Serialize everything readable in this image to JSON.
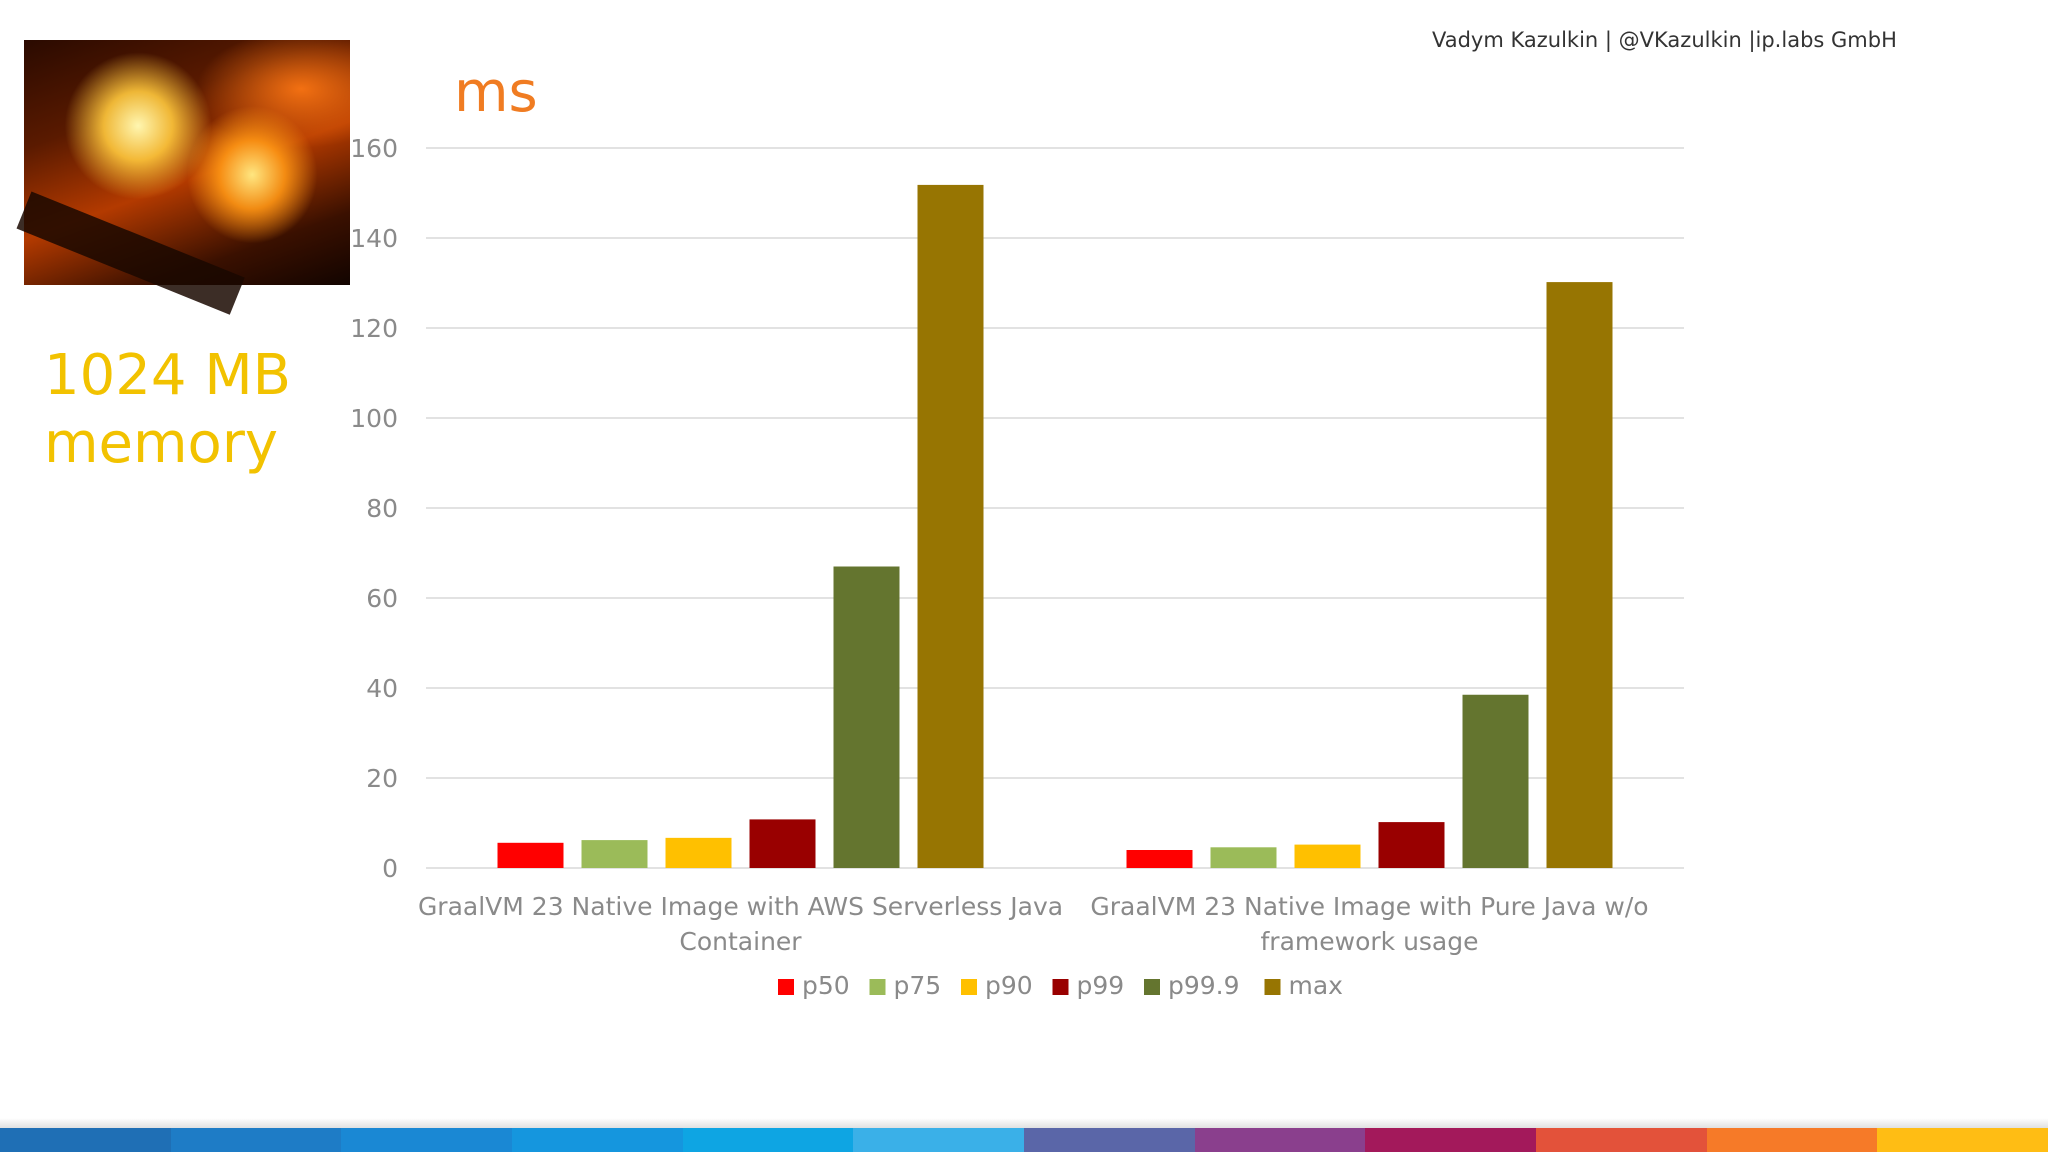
{
  "header": {
    "credit": "Vadym Kazulkin | @VKazulkin |ip.labs GmbH"
  },
  "side": {
    "memory_line1": "1024 MB",
    "memory_line2": "memory",
    "photo_icon": "campfire-image"
  },
  "unit": "ms",
  "colors": {
    "p50": "#ff0000",
    "p75": "#9bbb59",
    "p90": "#ffc000",
    "p99": "#990000",
    "p99.9": "#64752f",
    "max": "#977502"
  },
  "stripe_colors": [
    "#1f6fb5",
    "#1e7cc6",
    "#1a88d4",
    "#1596de",
    "#0ea5e3",
    "#3ab0e8",
    "#5a66a8",
    "#8a3f8d",
    "#a3195b",
    "#e3523a",
    "#f67a28",
    "#ffbd14"
  ],
  "chart_data": {
    "type": "bar",
    "categories": [
      "GraalVM 23 Native Image with AWS Serverless Java Container",
      "GraalVM 23 Native Image with Pure Java w/o framework usage"
    ],
    "category_lines": [
      [
        "GraalVM 23 Native Image with AWS Serverless Java",
        "Container"
      ],
      [
        "GraalVM 23 Native Image with Pure Java w/o",
        "framework usage"
      ]
    ],
    "series": [
      {
        "name": "p50",
        "values": [
          5.6,
          4.0
        ]
      },
      {
        "name": "p75",
        "values": [
          6.2,
          4.6
        ]
      },
      {
        "name": "p90",
        "values": [
          6.7,
          5.2
        ]
      },
      {
        "name": "p99",
        "values": [
          10.8,
          10.2
        ]
      },
      {
        "name": "p99.9",
        "values": [
          67.0,
          38.5
        ]
      },
      {
        "name": "max",
        "values": [
          151.8,
          130.2
        ]
      }
    ],
    "ylim": [
      0,
      160
    ],
    "yticks": [
      0,
      20,
      40,
      60,
      80,
      100,
      120,
      140,
      160
    ],
    "ylabel": "ms",
    "grid": true,
    "legend": "bottom"
  }
}
